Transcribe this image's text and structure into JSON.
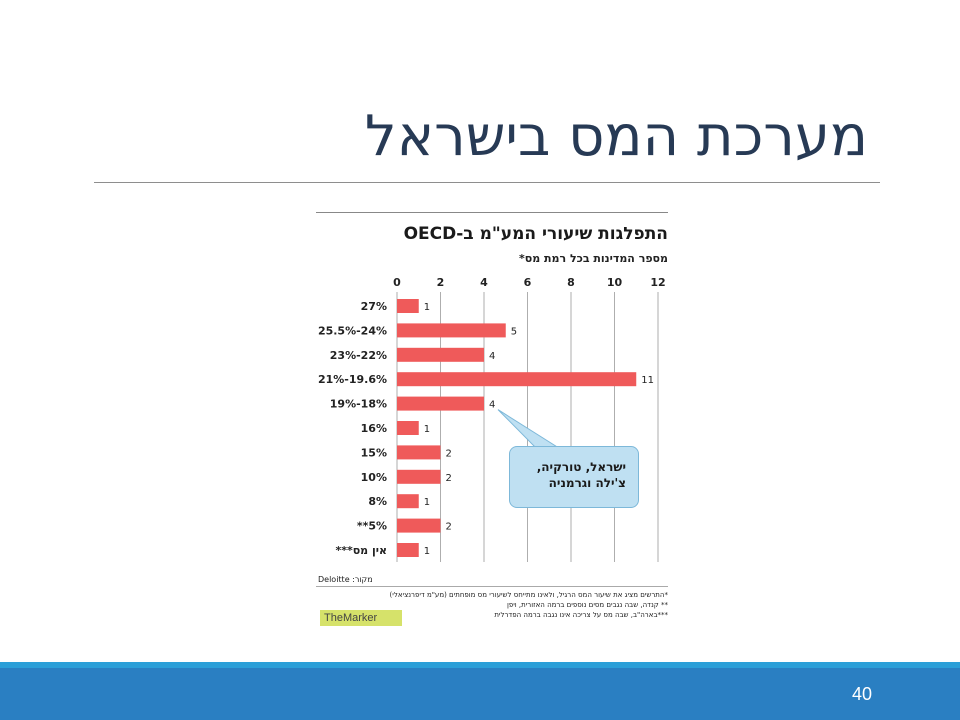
{
  "slide": {
    "title": "מערכת המס בישראל",
    "page_number": "40"
  },
  "chart_data": {
    "type": "bar",
    "orientation": "horizontal",
    "title": "התפלגות שיעורי המע\"מ ב-OECD",
    "subtitle": "מספר המדינות בכל רמת מס*",
    "xlim": [
      0,
      12
    ],
    "x_ticks": [
      0,
      2,
      4,
      6,
      8,
      10,
      12
    ],
    "grid": true,
    "categories": [
      "27%",
      "25.5%-24%",
      "23%-22%",
      "21%-19.6%",
      "19%-18%",
      "16%",
      "15%",
      "10%",
      "8%",
      "**5%",
      "***אין מס"
    ],
    "values": [
      1,
      5,
      4,
      11,
      4,
      1,
      2,
      2,
      1,
      2,
      1
    ],
    "bar_color": "#ef5a5a",
    "annotation": {
      "lines": [
        "ישראל, טורקיה,",
        "צ'ילה וגרמניה"
      ],
      "points_to_category": "19%-18%"
    },
    "source": "מקור: Deloitte",
    "footnotes": [
      "*התרשים מציג את שיעור המס הרגיל, ולאינו מתייחס לשיעורי מס מופחתים (מע\"מ דיפרנציאלי)",
      "** קנדה, שבה נגבים מסים נוספים ברמה האזורית, ויפן",
      "***בארה\"ב, שבה מס על צריכה אינו נגבה ברמה הפדרלית"
    ],
    "logo_text": "TheMarker"
  }
}
